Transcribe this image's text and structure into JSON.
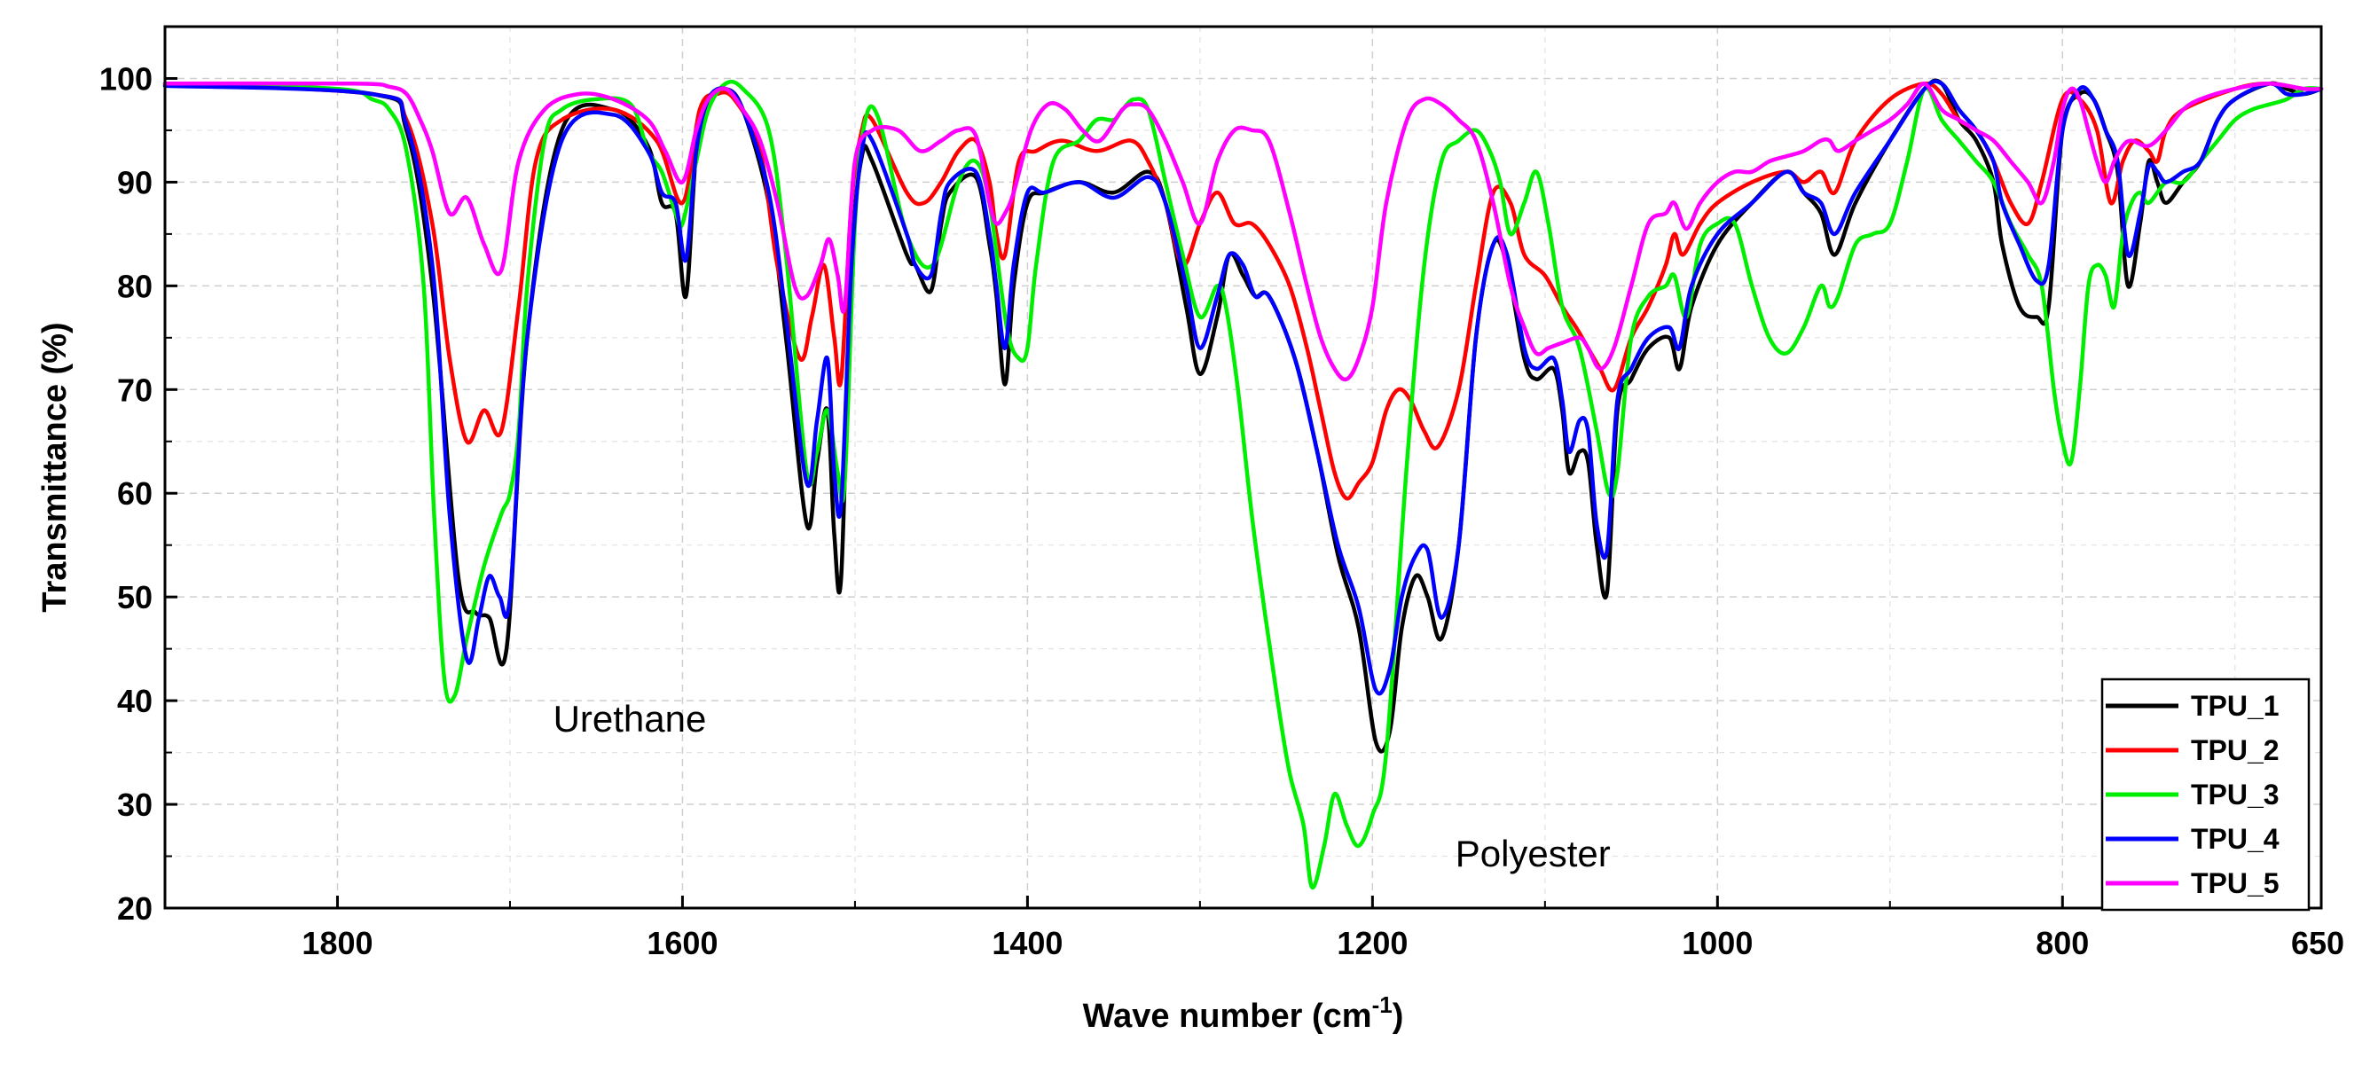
{
  "chart_data": {
    "type": "line",
    "title": "",
    "xlabel": "Wave number (cm",
    "xlabel_sup": "-1",
    "xlabel_tail": ")",
    "ylabel": "Transmittance (%)",
    "xlim": [
      1900,
      650
    ],
    "ylim": [
      20,
      105
    ],
    "x_reversed": true,
    "grid": true,
    "legend_position": "bottom-right",
    "x_ticks": [
      1800,
      1600,
      1400,
      1200,
      1000,
      800,
      650
    ],
    "y_ticks": [
      20,
      30,
      40,
      50,
      60,
      70,
      80,
      90,
      100
    ],
    "annotations": [
      {
        "text": "Urethane",
        "x": 1675,
        "y": 37
      },
      {
        "text": "Polyester",
        "x": 1152,
        "y": 24
      }
    ],
    "series": [
      {
        "name": "TPU_1",
        "color": "#000000",
        "x": [
          1900,
          1780,
          1760,
          1745,
          1730,
          1720,
          1712,
          1702,
          1690,
          1670,
          1640,
          1620,
          1612,
          1604,
          1598,
          1592,
          1585,
          1575,
          1565,
          1550,
          1540,
          1528,
          1522,
          1516,
          1512,
          1508,
          1502,
          1496,
          1490,
          1470,
          1465,
          1456,
          1450,
          1445,
          1430,
          1422,
          1418,
          1413,
          1408,
          1400,
          1390,
          1370,
          1350,
          1330,
          1320,
          1308,
          1300,
          1290,
          1283,
          1275,
          1268,
          1260,
          1245,
          1232,
          1220,
          1208,
          1198,
          1190,
          1183,
          1175,
          1168,
          1160,
          1150,
          1140,
          1130,
          1122,
          1112,
          1105,
          1095,
          1090,
          1086,
          1080,
          1075,
          1070,
          1064,
          1058,
          1050,
          1040,
          1028,
          1022,
          1015,
          1000,
          980,
          960,
          950,
          940,
          932,
          920,
          900,
          880,
          870,
          860,
          850,
          840,
          835,
          825,
          815,
          808,
          800,
          790,
          782,
          775,
          768,
          762,
          755,
          750,
          745,
          740,
          730,
          720,
          710,
          700,
          680,
          670,
          660,
          650
        ],
        "values": [
          99.5,
          98.5,
          95,
          80,
          52,
          48.5,
          48,
          45,
          75,
          95,
          97,
          93.5,
          88,
          87,
          79,
          93,
          98,
          99,
          97,
          88,
          75,
          57,
          63,
          68,
          56,
          52,
          82,
          92.5,
          92,
          83,
          82,
          79.5,
          86,
          89,
          90.5,
          84,
          79,
          70.5,
          80,
          88,
          89,
          90,
          89,
          91,
          88,
          78,
          71.5,
          77,
          83,
          81,
          79,
          79,
          73,
          64,
          54,
          47,
          36,
          37,
          47,
          52,
          50,
          46,
          55,
          75,
          84,
          82,
          73,
          71,
          72,
          68,
          62,
          64,
          63,
          55,
          50.5,
          68,
          71,
          74,
          75,
          72,
          78,
          84,
          88,
          91,
          89,
          87,
          83,
          88,
          94,
          99,
          99.5,
          96,
          94,
          90,
          84,
          78,
          77,
          78,
          95,
          98.5,
          98,
          95,
          91,
          80,
          86,
          92,
          90,
          88,
          90,
          92,
          96,
          98,
          99.5,
          99,
          98.5,
          99
        ]
      },
      {
        "name": "TPU_2",
        "color": "#ff0000",
        "x": [
          1900,
          1780,
          1760,
          1745,
          1735,
          1725,
          1715,
          1705,
          1695,
          1685,
          1670,
          1640,
          1615,
          1600,
          1590,
          1580,
          1570,
          1555,
          1545,
          1532,
          1525,
          1518,
          1512,
          1508,
          1502,
          1496,
          1490,
          1470,
          1460,
          1450,
          1440,
          1430,
          1422,
          1418,
          1413,
          1405,
          1395,
          1380,
          1360,
          1340,
          1330,
          1320,
          1310,
          1300,
          1290,
          1280,
          1270,
          1260,
          1248,
          1238,
          1230,
          1222,
          1215,
          1208,
          1200,
          1192,
          1185,
          1178,
          1170,
          1162,
          1150,
          1140,
          1130,
          1120,
          1112,
          1100,
          1090,
          1082,
          1075,
          1068,
          1060,
          1050,
          1040,
          1030,
          1025,
          1020,
          1010,
          1000,
          980,
          960,
          950,
          940,
          932,
          920,
          900,
          880,
          870,
          860,
          850,
          840,
          830,
          820,
          812,
          800,
          790,
          780,
          772,
          765,
          758,
          750,
          745,
          740,
          730,
          700,
          680,
          660,
          650
        ],
        "values": [
          99.5,
          98.5,
          96,
          86,
          73,
          65,
          68,
          66,
          78,
          92,
          96,
          97,
          94,
          88,
          97,
          98.5,
          98,
          93,
          82,
          73,
          77,
          82,
          75,
          71,
          88,
          95,
          96,
          89,
          88,
          90,
          93,
          94,
          90,
          85,
          83,
          92,
          93,
          94,
          93,
          94,
          92,
          88,
          82,
          86,
          89,
          86,
          86,
          84,
          80,
          74,
          68,
          62,
          59.5,
          61,
          63,
          68,
          70,
          69,
          66,
          64.5,
          70,
          80,
          89,
          88,
          83,
          81,
          78,
          76,
          74,
          72,
          70,
          75,
          78,
          82,
          85,
          83,
          86,
          88,
          90,
          91,
          90,
          91,
          89,
          94,
          98,
          99.5,
          98.5,
          96,
          95,
          92,
          88,
          86,
          90,
          98,
          98,
          95,
          88,
          92,
          94,
          93,
          92,
          95,
          97,
          99,
          99.5,
          99,
          99
        ]
      },
      {
        "name": "TPU_3",
        "color": "#00ee00",
        "x": [
          1900,
          1800,
          1780,
          1770,
          1760,
          1750,
          1744,
          1738,
          1732,
          1725,
          1715,
          1705,
          1700,
          1695,
          1690,
          1680,
          1670,
          1650,
          1630,
          1620,
          1612,
          1604,
          1600,
          1592,
          1585,
          1575,
          1565,
          1550,
          1540,
          1528,
          1522,
          1516,
          1510,
          1506,
          1500,
          1494,
          1486,
          1470,
          1455,
          1440,
          1430,
          1422,
          1412,
          1405,
          1400,
          1395,
          1385,
          1370,
          1360,
          1350,
          1345,
          1338,
          1330,
          1320,
          1310,
          1300,
          1290,
          1285,
          1278,
          1270,
          1262,
          1255,
          1248,
          1240,
          1235,
          1228,
          1222,
          1215,
          1208,
          1200,
          1192,
          1180,
          1170,
          1160,
          1150,
          1140,
          1132,
          1126,
          1120,
          1112,
          1105,
          1098,
          1090,
          1080,
          1070,
          1063,
          1058,
          1050,
          1040,
          1030,
          1025,
          1018,
          1010,
          1000,
          990,
          980,
          970,
          960,
          950,
          940,
          935,
          930,
          920,
          910,
          900,
          890,
          880,
          870,
          860,
          850,
          840,
          830,
          820,
          812,
          805,
          800,
          795,
          790,
          785,
          780,
          775,
          770,
          765,
          760,
          755,
          750,
          740,
          730,
          720,
          710,
          700,
          690,
          680,
          670,
          660,
          650
        ],
        "values": [
          99.5,
          99,
          98,
          97,
          93,
          80,
          58,
          42,
          40.5,
          46,
          53,
          58,
          60,
          66,
          80,
          94,
          97,
          98,
          97.5,
          93,
          91,
          87,
          86,
          92,
          97,
          99.5,
          99,
          95,
          83,
          62,
          64,
          68,
          62,
          61,
          86,
          96,
          96,
          85,
          82,
          90,
          92,
          88,
          76,
          73,
          74,
          82,
          92,
          94,
          96,
          96,
          97,
          98,
          97,
          90,
          83,
          77,
          80,
          78,
          70,
          58,
          48,
          40,
          33,
          28,
          22,
          26,
          31,
          28,
          26,
          29,
          35,
          63,
          82,
          92,
          94,
          95,
          93,
          90,
          85,
          88,
          91,
          86,
          78,
          74,
          66,
          60,
          62,
          75,
          79,
          80,
          81,
          77,
          84,
          86,
          86,
          80,
          75,
          73.5,
          76,
          80,
          78,
          79,
          84,
          85,
          86,
          92,
          99,
          96,
          94,
          92,
          90,
          86,
          83,
          80,
          70,
          65,
          63,
          70,
          80,
          82,
          81,
          78,
          85,
          88,
          89,
          88,
          90,
          90,
          92,
          94,
          96,
          97,
          97.5,
          98,
          99,
          99
        ]
      },
      {
        "name": "TPU_4",
        "color": "#0000ff",
        "x": [
          1900,
          1780,
          1760,
          1745,
          1735,
          1725,
          1718,
          1712,
          1706,
          1700,
          1690,
          1670,
          1640,
          1620,
          1612,
          1604,
          1598,
          1592,
          1585,
          1575,
          1565,
          1550,
          1540,
          1528,
          1522,
          1516,
          1512,
          1508,
          1502,
          1496,
          1490,
          1470,
          1465,
          1456,
          1450,
          1445,
          1430,
          1422,
          1418,
          1413,
          1408,
          1400,
          1390,
          1370,
          1350,
          1330,
          1320,
          1308,
          1300,
          1290,
          1283,
          1275,
          1268,
          1260,
          1245,
          1232,
          1220,
          1208,
          1198,
          1190,
          1183,
          1175,
          1168,
          1160,
          1150,
          1140,
          1130,
          1122,
          1112,
          1105,
          1095,
          1090,
          1086,
          1080,
          1075,
          1070,
          1064,
          1058,
          1050,
          1040,
          1028,
          1022,
          1015,
          1000,
          980,
          960,
          950,
          940,
          932,
          920,
          900,
          880,
          870,
          860,
          850,
          840,
          835,
          825,
          815,
          808,
          800,
          790,
          782,
          775,
          768,
          762,
          755,
          750,
          745,
          740,
          730,
          720,
          710,
          700,
          680,
          670,
          660,
          650
        ],
        "values": [
          99.3,
          98.5,
          95.5,
          82,
          58,
          44,
          48,
          52,
          50,
          50,
          75,
          94,
          96.5,
          93,
          89,
          88,
          82.5,
          93,
          98,
          99,
          97,
          89,
          77,
          61,
          67,
          73,
          62,
          59,
          82,
          93,
          94,
          85,
          82,
          81,
          87,
          90,
          91,
          85,
          80,
          74,
          82,
          89,
          89,
          90,
          88.5,
          90.5,
          88,
          80,
          74,
          79,
          83,
          82,
          79,
          79,
          73,
          64,
          55,
          49,
          41,
          43,
          50,
          54,
          54.5,
          48,
          55,
          75,
          84,
          83,
          74,
          72,
          73,
          69,
          64,
          67,
          66,
          57,
          54.5,
          69,
          72,
          75,
          76,
          74,
          80,
          85,
          88,
          91,
          89,
          88,
          85,
          89,
          94,
          99,
          99.5,
          97,
          95,
          92,
          88,
          84,
          80.5,
          82,
          95,
          99,
          98,
          95,
          92,
          83,
          87,
          91.5,
          91,
          90,
          91,
          92,
          96,
          98,
          99.5,
          98.5,
          98.5,
          99
        ]
      },
      {
        "name": "TPU_5",
        "color": "#ff00ff",
        "x": [
          1900,
          1790,
          1770,
          1760,
          1752,
          1745,
          1735,
          1725,
          1715,
          1705,
          1695,
          1680,
          1660,
          1640,
          1620,
          1610,
          1600,
          1592,
          1585,
          1575,
          1565,
          1555,
          1545,
          1535,
          1528,
          1520,
          1515,
          1510,
          1506,
          1500,
          1490,
          1475,
          1462,
          1450,
          1440,
          1430,
          1422,
          1418,
          1413,
          1408,
          1398,
          1388,
          1378,
          1368,
          1358,
          1345,
          1338,
          1330,
          1320,
          1310,
          1300,
          1290,
          1280,
          1270,
          1260,
          1248,
          1238,
          1230,
          1222,
          1215,
          1208,
          1200,
          1192,
          1180,
          1170,
          1160,
          1150,
          1140,
          1130,
          1120,
          1112,
          1105,
          1098,
          1090,
          1080,
          1075,
          1068,
          1060,
          1050,
          1040,
          1030,
          1025,
          1018,
          1010,
          1000,
          990,
          980,
          970,
          960,
          950,
          940,
          935,
          930,
          920,
          910,
          900,
          890,
          880,
          870,
          860,
          850,
          840,
          830,
          820,
          812,
          805,
          800,
          795,
          790,
          785,
          780,
          775,
          770,
          765,
          760,
          750,
          740,
          730,
          720,
          700,
          680,
          660,
          650
        ],
        "values": [
          99.5,
          99.5,
          99.2,
          98.5,
          96,
          93,
          87,
          88.5,
          84,
          81.5,
          92,
          97,
          98.5,
          98,
          96,
          93,
          90,
          95,
          98,
          99,
          97,
          94,
          88,
          80,
          79,
          82,
          84.5,
          81,
          78,
          92,
          95,
          95,
          93,
          94,
          95,
          94.5,
          88,
          86,
          87,
          89,
          95,
          97.5,
          97,
          95,
          94,
          97,
          97.5,
          97,
          94,
          90,
          86,
          92,
          95,
          95,
          94,
          87,
          80,
          75,
          72,
          71,
          73,
          78,
          88,
          96,
          98,
          97.5,
          96,
          94,
          88,
          80,
          76,
          73.5,
          74,
          74.5,
          75,
          74,
          72,
          74,
          80,
          86,
          87,
          88,
          85.5,
          88,
          90,
          91,
          91,
          92,
          92.5,
          93,
          94,
          94,
          93,
          94,
          95,
          96,
          97.5,
          99.5,
          97,
          96,
          95,
          94,
          92,
          90,
          88,
          92,
          97,
          99,
          98,
          95,
          92,
          90,
          92,
          93.5,
          94,
          93.5,
          95,
          97,
          98,
          99,
          99.5,
          99,
          99
        ]
      }
    ]
  }
}
